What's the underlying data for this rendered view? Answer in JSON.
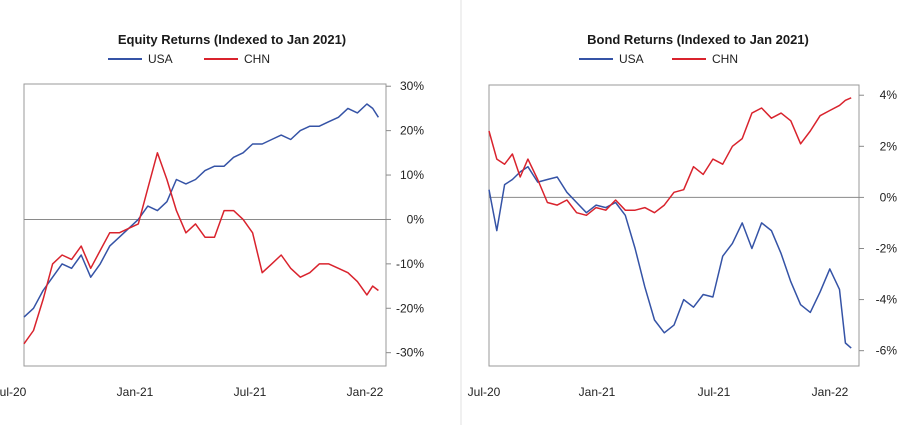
{
  "colors": {
    "usa": "#3553a6",
    "chn": "#d9232d"
  },
  "chart_data": [
    {
      "type": "line",
      "title": "Equity Returns (Indexed to Jan 2021)",
      "legend": [
        "USA",
        "CHN"
      ],
      "x_ticks": [
        "Jul-20",
        "Jan-21",
        "Jul-21",
        "Jan-22"
      ],
      "y_ticks": [
        "30%",
        "20%",
        "10%",
        "0%",
        "-10%",
        "-20%",
        "-30%"
      ],
      "y_tick_values": [
        30,
        20,
        10,
        0,
        -10,
        -20,
        -30
      ],
      "ylim": [
        -33,
        30.5
      ],
      "xlim": [
        0,
        19
      ],
      "ylabel": "",
      "xlabel": "",
      "series": [
        {
          "name": "USA",
          "x": [
            0,
            0.5,
            1,
            1.5,
            2,
            2.5,
            3,
            3.5,
            4,
            4.5,
            5,
            5.5,
            6,
            6.5,
            7,
            7.5,
            8,
            8.5,
            9,
            9.5,
            10,
            10.5,
            11,
            11.5,
            12,
            12.5,
            13,
            13.5,
            14,
            14.5,
            15,
            15.5,
            16,
            16.5,
            17,
            17.5,
            18,
            18.3,
            18.6
          ],
          "y": [
            -22,
            -20,
            -16,
            -13,
            -10,
            -11,
            -8,
            -13,
            -10,
            -6,
            -4,
            -2,
            0,
            3,
            2,
            4,
            9,
            8,
            9,
            11,
            12,
            12,
            14,
            15,
            17,
            17,
            18,
            19,
            18,
            20,
            21,
            21,
            22,
            23,
            25,
            24,
            26,
            25,
            23
          ]
        },
        {
          "name": "CHN",
          "x": [
            0,
            0.5,
            1,
            1.5,
            2,
            2.5,
            3,
            3.5,
            4,
            4.5,
            5,
            5.5,
            6,
            6.5,
            7,
            7.5,
            8,
            8.5,
            9,
            9.5,
            10,
            10.5,
            11,
            11.5,
            12,
            12.5,
            13,
            13.5,
            14,
            14.5,
            15,
            15.5,
            16,
            16.5,
            17,
            17.5,
            18,
            18.3,
            18.6
          ],
          "y": [
            -28,
            -25,
            -18,
            -10,
            -8,
            -9,
            -6,
            -11,
            -7,
            -3,
            -3,
            -2,
            -1,
            7,
            15,
            9,
            2,
            -3,
            -1,
            -4,
            -4,
            2,
            2,
            0,
            -3,
            -12,
            -10,
            -8,
            -11,
            -13,
            -12,
            -10,
            -10,
            -11,
            -12,
            -14,
            -17,
            -15,
            -16
          ]
        }
      ]
    },
    {
      "type": "line",
      "title": "Bond Returns (Indexed to Jan 2021)",
      "legend": [
        "USA",
        "CHN"
      ],
      "x_ticks": [
        "Jul-20",
        "Jan-21",
        "Jul-21",
        "Jan-22"
      ],
      "y_ticks": [
        "4%",
        "2%",
        "0%",
        "-2%",
        "-4%",
        "-6%"
      ],
      "y_tick_values": [
        4,
        2,
        0,
        -2,
        -4,
        -6
      ],
      "ylim": [
        -6.6,
        4.4
      ],
      "xlim": [
        0,
        19
      ],
      "ylabel": "",
      "xlabel": "",
      "series": [
        {
          "name": "USA",
          "x": [
            0,
            0.4,
            0.8,
            1.2,
            1.6,
            2,
            2.5,
            3,
            3.5,
            4,
            4.5,
            5,
            5.5,
            6,
            6.5,
            7,
            7.5,
            8,
            8.5,
            9,
            9.5,
            10,
            10.5,
            11,
            11.5,
            12,
            12.5,
            13,
            13.5,
            14,
            14.5,
            15,
            15.5,
            16,
            16.5,
            17,
            17.5,
            18,
            18.3,
            18.6
          ],
          "y": [
            0.3,
            -1.3,
            0.5,
            0.7,
            1,
            1.2,
            0.6,
            0.7,
            0.8,
            0.2,
            -0.2,
            -0.6,
            -0.3,
            -0.4,
            -0.2,
            -0.7,
            -2,
            -3.5,
            -4.8,
            -5.3,
            -5,
            -4,
            -4.3,
            -3.8,
            -3.9,
            -2.3,
            -1.8,
            -1,
            -2,
            -1,
            -1.3,
            -2.2,
            -3.3,
            -4.2,
            -4.5,
            -3.7,
            -2.8,
            -3.6,
            -5.7,
            -5.9
          ]
        },
        {
          "name": "CHN",
          "x": [
            0,
            0.4,
            0.8,
            1.2,
            1.6,
            2,
            2.5,
            3,
            3.5,
            4,
            4.5,
            5,
            5.5,
            6,
            6.5,
            7,
            7.5,
            8,
            8.5,
            9,
            9.5,
            10,
            10.5,
            11,
            11.5,
            12,
            12.5,
            13,
            13.5,
            14,
            14.5,
            15,
            15.5,
            16,
            16.5,
            17,
            17.5,
            18,
            18.3,
            18.6
          ],
          "y": [
            2.6,
            1.5,
            1.3,
            1.7,
            0.8,
            1.5,
            0.7,
            -0.2,
            -0.3,
            -0.1,
            -0.6,
            -0.7,
            -0.4,
            -0.5,
            -0.1,
            -0.5,
            -0.5,
            -0.4,
            -0.6,
            -0.3,
            0.2,
            0.3,
            1.2,
            0.9,
            1.5,
            1.3,
            2,
            2.3,
            3.3,
            3.5,
            3.1,
            3.3,
            3,
            2.1,
            2.6,
            3.2,
            3.4,
            3.6,
            3.8,
            3.9
          ]
        }
      ]
    }
  ]
}
